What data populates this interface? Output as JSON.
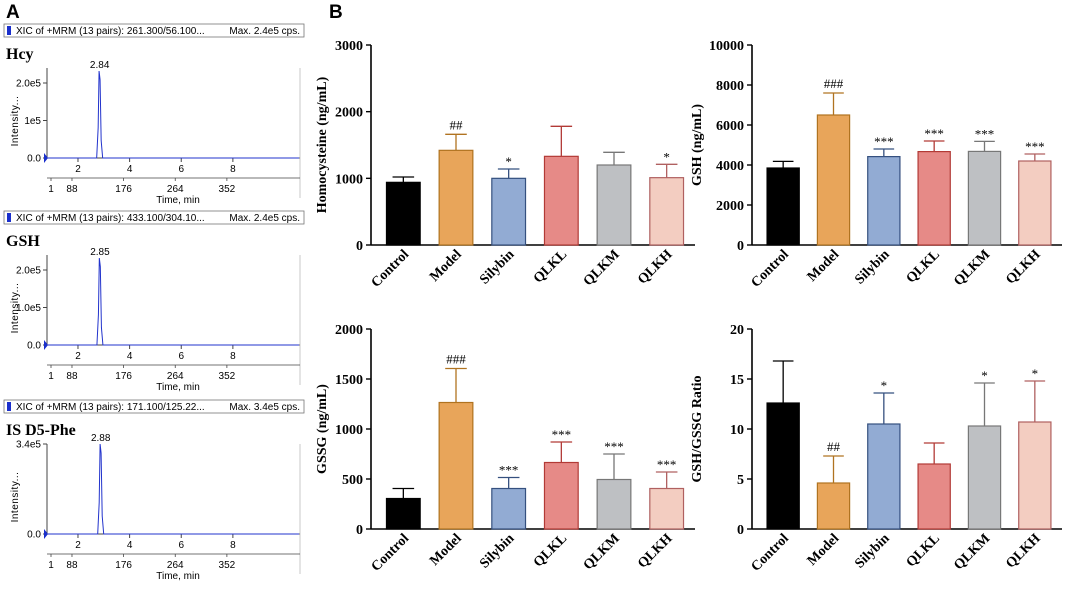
{
  "panel_labels": {
    "a": "A",
    "b": "B"
  },
  "colors": {
    "Control": "#000000",
    "Model": "#E8A55A",
    "Silybin": "#92ABD3",
    "QLKL": "#E68A87",
    "QLKM": "#BEC0C3",
    "QLKH": "#F3CDC1",
    "trace": "#2233CC",
    "marker": "#1a2fcc"
  },
  "chart_data": [
    {
      "type": "line",
      "id": "chrom-hcy",
      "title": "XIC of +MRM (13 pairs): 261.300/56.100...",
      "max_label": "Max. 2.4e5 cps.",
      "analyte": "Hcy",
      "ylabel": "Intensity...",
      "xlabel": "Time, min",
      "x_ticks": [
        "2",
        "4",
        "6",
        "8"
      ],
      "scan_ticks": [
        "1",
        "88",
        "176",
        "264",
        "352"
      ],
      "y_ticks": [
        "0.0",
        "1e5",
        "2.0e5"
      ],
      "xlim": [
        0.8,
        10.6
      ],
      "ylim": [
        0,
        240000
      ],
      "peak_time": 2.84,
      "peak_label": "2.84",
      "peak_height": 232000
    },
    {
      "type": "line",
      "id": "chrom-gsh",
      "title": "XIC of +MRM (13 pairs): 433.100/304.10...",
      "max_label": "Max. 2.4e5 cps.",
      "analyte": "GSH",
      "ylabel": "Intensity...",
      "xlabel": "Time, min",
      "x_ticks": [
        "2",
        "4",
        "6",
        "8"
      ],
      "scan_ticks": [
        "1",
        "88",
        "176",
        "264",
        "352"
      ],
      "y_ticks": [
        "0.0",
        "1.0e5",
        "2.0e5"
      ],
      "xlim": [
        0.8,
        10.6
      ],
      "ylim": [
        0,
        240000
      ],
      "peak_time": 2.85,
      "peak_label": "2.85",
      "peak_height": 232000
    },
    {
      "type": "line",
      "id": "chrom-is",
      "title": "XIC of +MRM (13 pairs): 171.100/125.22...",
      "max_label": "Max. 3.4e5 cps.",
      "analyte": "IS D5-Phe",
      "ylabel": "Intensity...",
      "xlabel": "Time, min",
      "x_ticks": [
        "2",
        "4",
        "6",
        "8"
      ],
      "scan_ticks": [
        "1",
        "88",
        "176",
        "264",
        "352"
      ],
      "y_ticks": [
        "0.0",
        "3.4e5"
      ],
      "xlim": [
        0.8,
        10.6
      ],
      "ylim": [
        0,
        340000
      ],
      "peak_time": 2.88,
      "peak_label": "2.88",
      "peak_height": 340000
    },
    {
      "type": "bar",
      "id": "bar-hcy",
      "ylabel": "Homocysteine (ng/mL)",
      "categories": [
        "Control",
        "Model",
        "Silybin",
        "QLKL",
        "QLKM",
        "QLKH"
      ],
      "values": [
        940,
        1420,
        1000,
        1330,
        1200,
        1010
      ],
      "errors": [
        80,
        240,
        140,
        450,
        190,
        200
      ],
      "significance": [
        "",
        "##",
        "*",
        "",
        "",
        "*"
      ],
      "ylim": [
        0,
        3000
      ],
      "yticks": [
        0,
        1000,
        2000,
        3000
      ]
    },
    {
      "type": "bar",
      "id": "bar-gsh",
      "ylabel": "GSH (ng/mL)",
      "categories": [
        "Control",
        "Model",
        "Silybin",
        "QLKL",
        "QLKM",
        "QLKH"
      ],
      "values": [
        3850,
        6500,
        4420,
        4670,
        4680,
        4200
      ],
      "errors": [
        330,
        1100,
        380,
        530,
        500,
        350
      ],
      "significance": [
        "",
        "###",
        "***",
        "***",
        "***",
        "***"
      ],
      "ylim": [
        0,
        10000
      ],
      "yticks": [
        0,
        2000,
        4000,
        6000,
        8000,
        10000
      ]
    },
    {
      "type": "bar",
      "id": "bar-gssg",
      "ylabel": "GSSG (ng/mL)",
      "categories": [
        "Control",
        "Model",
        "Silybin",
        "QLKL",
        "QLKM",
        "QLKH"
      ],
      "values": [
        305,
        1265,
        405,
        665,
        495,
        405
      ],
      "errors": [
        100,
        340,
        110,
        205,
        255,
        165
      ],
      "significance": [
        "",
        "###",
        "***",
        "***",
        "***",
        "***"
      ],
      "ylim": [
        0,
        2000
      ],
      "yticks": [
        0,
        500,
        1000,
        1500,
        2000
      ]
    },
    {
      "type": "bar",
      "id": "bar-ratio",
      "ylabel": "GSH/GSSG Ratio",
      "categories": [
        "Control",
        "Model",
        "Silybin",
        "QLKL",
        "QLKM",
        "QLKH"
      ],
      "values": [
        12.6,
        4.6,
        10.5,
        6.5,
        10.3,
        10.7
      ],
      "errors": [
        4.2,
        2.7,
        3.1,
        2.1,
        4.3,
        4.1
      ],
      "significance": [
        "",
        "##",
        "*",
        "",
        "*",
        "*"
      ],
      "ylim": [
        0,
        20
      ],
      "yticks": [
        0,
        5,
        10,
        15,
        20
      ]
    }
  ]
}
